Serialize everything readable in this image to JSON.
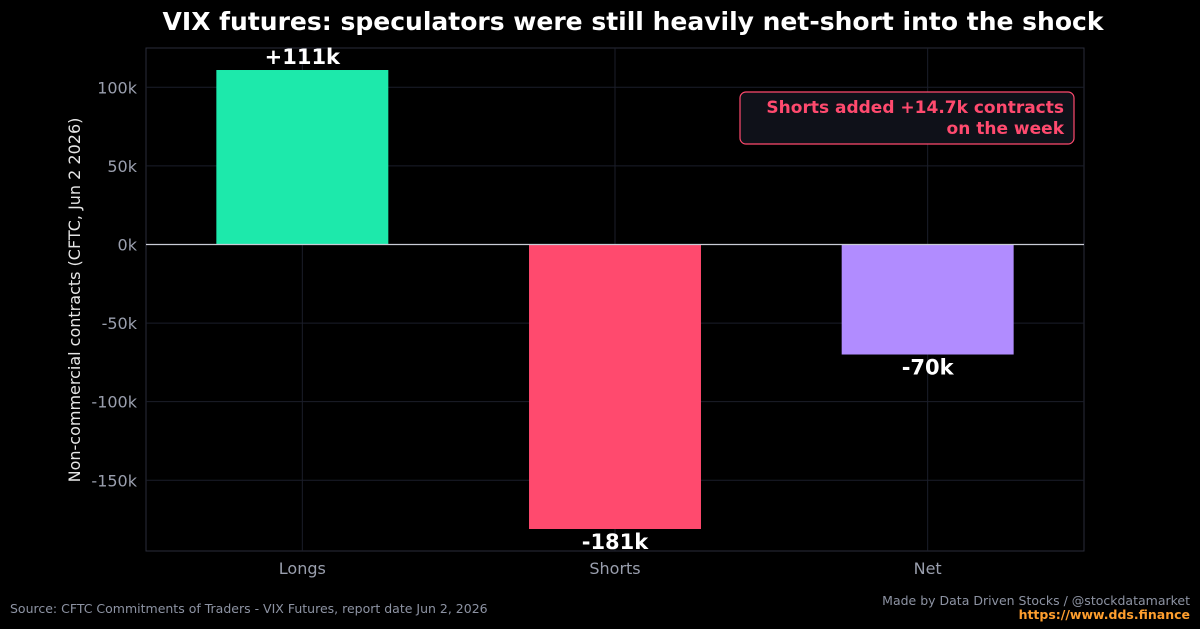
{
  "chart_data": {
    "type": "bar",
    "title": "VIX futures: speculators were still heavily net-short into the shock",
    "ylabel": "Non-commercial contracts (CFTC, Jun 2 2026)",
    "categories": [
      "Longs",
      "Shorts",
      "Net"
    ],
    "values": [
      111,
      -181,
      -70
    ],
    "value_labels": [
      "+111k",
      "-181k",
      "-70k"
    ],
    "ylim": [
      -195,
      125
    ],
    "yticks": [
      100,
      50,
      0,
      -50,
      -100,
      -150
    ],
    "ytick_labels": [
      "100k",
      "50k",
      "0k",
      "-50k",
      "-100k",
      "-150k"
    ],
    "bar_colors": [
      "#1de9ab",
      "#ff4a6e",
      "#b18cff"
    ],
    "grid": true,
    "annotation": {
      "lines": [
        "Shorts added +14.7k contracts",
        "on the week"
      ],
      "color": "#ff4a6e",
      "placement": "top-right"
    }
  },
  "footer": {
    "source": "Source: CFTC Commitments of Traders - VIX Futures, report date Jun 2, 2026",
    "credit": "Made by Data Driven Stocks / @stockdatamarket",
    "url": "https://www.dds.finance"
  }
}
